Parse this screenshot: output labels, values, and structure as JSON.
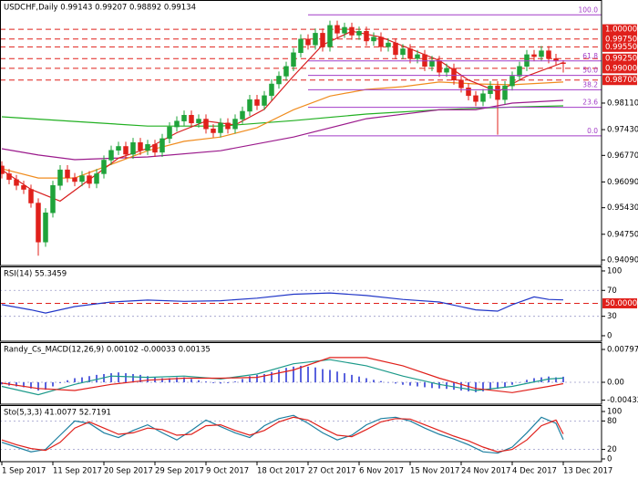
{
  "chart_data": [
    {
      "type": "candlestick",
      "title": "USDCHF,Daily  0.99143 0.99207 0.98892 0.99134",
      "x": [
        0,
        1,
        2,
        3,
        4,
        5,
        6,
        7,
        8,
        9,
        10,
        11,
        12,
        13,
        14,
        15,
        16,
        17,
        18,
        19,
        20,
        21,
        22,
        23,
        24,
        25,
        26,
        27,
        28,
        29,
        30,
        31,
        32,
        33,
        34,
        35,
        36,
        37,
        38,
        39,
        40,
        41,
        42,
        43,
        44,
        45,
        46,
        47,
        48,
        49,
        50,
        51,
        52,
        53,
        54,
        55,
        56,
        57,
        58,
        59,
        60,
        61,
        62,
        63,
        64,
        65,
        66,
        67,
        68,
        69,
        70,
        71,
        72,
        73,
        74,
        75,
        76,
        77
      ],
      "open": [
        0.965,
        0.963,
        0.9615,
        0.96,
        0.959,
        0.9555,
        0.9455,
        0.953,
        0.96,
        0.964,
        0.962,
        0.961,
        0.9625,
        0.9605,
        0.963,
        0.9665,
        0.969,
        0.97,
        0.968,
        0.971,
        0.969,
        0.9705,
        0.9685,
        0.972,
        0.975,
        0.9765,
        0.978,
        0.976,
        0.977,
        0.9745,
        0.9735,
        0.976,
        0.9745,
        0.977,
        0.979,
        0.982,
        0.9805,
        0.983,
        0.986,
        0.988,
        0.9905,
        0.994,
        0.9975,
        0.996,
        0.999,
        0.9955,
        1.001,
        0.999,
        1.0005,
        0.9985,
        0.9995,
        0.997,
        0.998,
        0.9955,
        0.9965,
        0.9935,
        0.995,
        0.9925,
        0.9935,
        0.9905,
        0.992,
        0.989,
        0.99,
        0.987,
        0.985,
        0.983,
        0.9815,
        0.9835,
        0.9855,
        0.982,
        0.9855,
        0.988,
        0.9905,
        0.9935,
        0.993,
        0.9945,
        0.9925,
        0.99143
      ],
      "high": [
        0.9662,
        0.9642,
        0.9627,
        0.9612,
        0.9602,
        0.9567,
        0.9542,
        0.9612,
        0.9652,
        0.9652,
        0.9632,
        0.9637,
        0.9637,
        0.9642,
        0.9677,
        0.9702,
        0.9712,
        0.9712,
        0.9722,
        0.9722,
        0.9717,
        0.9717,
        0.9732,
        0.9762,
        0.9777,
        0.9792,
        0.9792,
        0.9782,
        0.9782,
        0.9757,
        0.9772,
        0.9772,
        0.9782,
        0.9802,
        0.9832,
        0.9832,
        0.9842,
        0.9872,
        0.9892,
        0.9917,
        0.9952,
        0.9987,
        0.9987,
        1.0002,
        1.0002,
        1.0022,
        1.0022,
        1.0017,
        1.0017,
        1.0007,
        1.0007,
        0.9992,
        0.9992,
        0.9977,
        0.9977,
        0.9962,
        0.9962,
        0.9947,
        0.9947,
        0.9932,
        0.9932,
        0.9912,
        0.9912,
        0.9882,
        0.9862,
        0.9842,
        0.9847,
        0.9867,
        0.9867,
        0.9867,
        0.9892,
        0.9917,
        0.9947,
        0.9947,
        0.9957,
        0.9957,
        0.9937,
        0.99207
      ],
      "low": [
        0.9618,
        0.9603,
        0.9588,
        0.9578,
        0.9543,
        0.942,
        0.9443,
        0.9518,
        0.9588,
        0.9608,
        0.9598,
        0.9598,
        0.9593,
        0.9593,
        0.9618,
        0.9653,
        0.9678,
        0.9668,
        0.9668,
        0.9678,
        0.9678,
        0.9673,
        0.9673,
        0.9708,
        0.9738,
        0.9753,
        0.9748,
        0.9748,
        0.9733,
        0.9723,
        0.9723,
        0.9733,
        0.9733,
        0.9758,
        0.9778,
        0.9793,
        0.9793,
        0.9818,
        0.9848,
        0.9868,
        0.9893,
        0.9928,
        0.9948,
        0.9948,
        0.9943,
        0.9943,
        0.9978,
        0.9978,
        0.9973,
        0.9973,
        0.9958,
        0.9958,
        0.9943,
        0.9943,
        0.9923,
        0.9923,
        0.9913,
        0.9913,
        0.9893,
        0.9893,
        0.9878,
        0.9878,
        0.9858,
        0.9838,
        0.9818,
        0.9803,
        0.9803,
        0.9823,
        0.973,
        0.9808,
        0.9843,
        0.9868,
        0.9893,
        0.9918,
        0.9918,
        0.9913,
        0.9908,
        0.98892
      ],
      "close": [
        0.963,
        0.9615,
        0.96,
        0.959,
        0.9555,
        0.9455,
        0.953,
        0.96,
        0.964,
        0.962,
        0.961,
        0.9625,
        0.9605,
        0.963,
        0.9665,
        0.969,
        0.97,
        0.968,
        0.971,
        0.969,
        0.9705,
        0.9685,
        0.972,
        0.975,
        0.9765,
        0.978,
        0.976,
        0.977,
        0.9745,
        0.9735,
        0.976,
        0.9745,
        0.977,
        0.979,
        0.982,
        0.9805,
        0.983,
        0.986,
        0.988,
        0.9905,
        0.994,
        0.9975,
        0.996,
        0.999,
        0.9955,
        1.001,
        0.999,
        1.0005,
        0.9985,
        0.9995,
        0.997,
        0.998,
        0.9955,
        0.9965,
        0.9935,
        0.995,
        0.9925,
        0.9935,
        0.9905,
        0.992,
        0.989,
        0.99,
        0.987,
        0.985,
        0.983,
        0.9815,
        0.9835,
        0.9855,
        0.982,
        0.9855,
        0.988,
        0.9905,
        0.9935,
        0.993,
        0.9945,
        0.9925,
        0.992,
        0.99134
      ],
      "up_color": "#1fa33a",
      "down_color": "#e0201b",
      "ylim": [
        0.9395,
        1.0075
      ],
      "yticks": [
        {
          "value": 0.9811,
          "label": "0.98110"
        },
        {
          "value": 0.9743,
          "label": "0.97430"
        },
        {
          "value": 0.9677,
          "label": "0.96770"
        },
        {
          "value": 0.9609,
          "label": "0.96090"
        },
        {
          "value": 0.9543,
          "label": "0.95430"
        },
        {
          "value": 0.9475,
          "label": "0.94750"
        },
        {
          "value": 0.9409,
          "label": "0.94090"
        }
      ],
      "lines": [
        {
          "color": "#22b022",
          "x": [
            0,
            10,
            20,
            30,
            40,
            50,
            60,
            70,
            77
          ],
          "values": [
            0.9776,
            0.9764,
            0.9752,
            0.9752,
            0.9766,
            0.9783,
            0.9794,
            0.9801,
            0.9804
          ]
        },
        {
          "color": "#9b1a8c",
          "x": [
            0,
            5,
            10,
            20,
            30,
            40,
            50,
            60,
            65,
            70,
            77
          ],
          "values": [
            0.9694,
            0.9678,
            0.9666,
            0.9673,
            0.9689,
            0.9724,
            0.9771,
            0.9794,
            0.9794,
            0.9811,
            0.9818
          ]
        },
        {
          "color": "#f08c1e",
          "x": [
            0,
            5,
            10,
            15,
            20,
            25,
            30,
            35,
            40,
            45,
            50,
            55,
            60,
            65,
            70,
            77
          ],
          "values": [
            0.9643,
            0.9619,
            0.9619,
            0.9654,
            0.9689,
            0.9713,
            0.9724,
            0.9748,
            0.9794,
            0.9829,
            0.9846,
            0.9853,
            0.9865,
            0.986,
            0.9858,
            0.9865
          ]
        },
        {
          "color": "#d81e1e",
          "x": [
            0,
            4,
            8,
            12,
            16,
            20,
            24,
            28,
            32,
            36,
            40,
            44,
            48,
            52,
            56,
            60,
            64,
            68,
            72,
            77
          ],
          "values": [
            0.964,
            0.959,
            0.956,
            0.9615,
            0.967,
            0.9695,
            0.9735,
            0.9765,
            0.9755,
            0.9795,
            0.988,
            0.996,
            0.9995,
            0.998,
            0.995,
            0.992,
            0.987,
            0.984,
            0.988,
            0.9915
          ]
        }
      ],
      "levels": [
        {
          "value": 1.0,
          "label": "1.00000"
        },
        {
          "value": 0.9975,
          "label": "0.99750"
        },
        {
          "value": 0.9955,
          "label": "0.99550"
        },
        {
          "value": 0.9925,
          "label": "0.99250"
        },
        {
          "value": 0.99,
          "label": "0.99000"
        },
        {
          "value": 0.987,
          "label": "0.98700"
        }
      ],
      "level_color": "#e0201b",
      "fib": {
        "color": "#a23cc7",
        "from_x": 42,
        "levels": [
          {
            "value": 1.0037,
            "label": "100.0"
          },
          {
            "value": 0.9919,
            "label": "61.8"
          },
          {
            "value": 0.9882,
            "label": "50.0"
          },
          {
            "value": 0.9845,
            "label": "38.2"
          },
          {
            "value": 0.98,
            "label": "23.6"
          },
          {
            "value": 0.9727,
            "label": "0.0"
          }
        ]
      }
    },
    {
      "type": "line",
      "title": "RSI(14) 55.3459",
      "ylim": [
        -8.5,
        107
      ],
      "yticks": [
        100,
        70,
        30,
        0
      ],
      "grid": true,
      "series": [
        {
          "color": "#2136c8",
          "x": [
            0,
            4,
            6,
            10,
            15,
            20,
            25,
            30,
            35,
            40,
            45,
            50,
            55,
            60,
            65,
            68,
            70,
            73,
            75,
            77
          ],
          "values": [
            48,
            40,
            35,
            45,
            52,
            55,
            53,
            54,
            58,
            64,
            66,
            62,
            56,
            52,
            40,
            38,
            48,
            60,
            56,
            55.3459
          ]
        }
      ],
      "levels": [
        {
          "value": 50,
          "label": "50.0000"
        }
      ],
      "level_color": "#e0201b"
    },
    {
      "type": "macd",
      "title": "Randy_Cs_MACD(12,26,9) 0.00102 -0.00033 0.00135",
      "ylim": [
        -0.00531,
        0.00974
      ],
      "yticks": [
        0.00797,
        {
          "value": 0,
          "label": "0.00"
        },
        -0.00432
      ],
      "grid": true,
      "histogram": {
        "color": "#5a63de",
        "x": [
          0,
          1,
          2,
          3,
          4,
          5,
          6,
          7,
          8,
          9,
          10,
          11,
          12,
          13,
          14,
          15,
          16,
          17,
          18,
          19,
          20,
          21,
          22,
          23,
          24,
          25,
          26,
          27,
          28,
          29,
          30,
          31,
          32,
          33,
          34,
          35,
          36,
          37,
          38,
          39,
          40,
          41,
          42,
          43,
          44,
          45,
          46,
          47,
          48,
          49,
          50,
          51,
          52,
          53,
          54,
          55,
          56,
          57,
          58,
          59,
          60,
          61,
          62,
          63,
          64,
          65,
          66,
          67,
          68,
          69,
          70,
          71,
          72,
          73,
          74,
          75,
          76,
          77
        ],
        "values": [
          -0.0005,
          -0.0008,
          -0.001,
          -0.0012,
          -0.0015,
          -0.002,
          -0.0018,
          -0.001,
          -0.0002,
          0.0005,
          0.001,
          0.0012,
          0.0015,
          0.0018,
          0.002,
          0.0022,
          0.0024,
          0.0022,
          0.002,
          0.0018,
          0.0015,
          0.0012,
          0.001,
          0.001,
          0.0012,
          0.0012,
          0.0008,
          0.0005,
          0.0002,
          -0.0002,
          -0.0003,
          -0.0002,
          0.0002,
          0.0008,
          0.0015,
          0.0018,
          0.002,
          0.0025,
          0.003,
          0.0035,
          0.0038,
          0.004,
          0.0038,
          0.0036,
          0.0032,
          0.003,
          0.0026,
          0.0022,
          0.0018,
          0.0014,
          0.001,
          0.0006,
          0.0003,
          0.0,
          -0.0003,
          -0.0006,
          -0.0008,
          -0.001,
          -0.0012,
          -0.0014,
          -0.0015,
          -0.0016,
          -0.0018,
          -0.002,
          -0.0022,
          -0.0024,
          -0.0022,
          -0.0018,
          -0.0016,
          -0.0012,
          -0.0006,
          0.0,
          0.0006,
          0.001,
          0.0012,
          0.0014,
          0.0012,
          0.00135
        ]
      },
      "series": [
        {
          "color": "#1c9a8a",
          "x": [
            0,
            5,
            10,
            15,
            20,
            25,
            30,
            35,
            40,
            45,
            50,
            55,
            60,
            65,
            70,
            75,
            77
          ],
          "values": [
            -0.001,
            -0.003,
            -0.0005,
            0.0015,
            0.0012,
            0.0015,
            0.0008,
            0.002,
            0.0045,
            0.0055,
            0.004,
            0.0015,
            -0.0005,
            -0.002,
            -0.001,
            0.0008,
            0.00102
          ]
        },
        {
          "color": "#e0201b",
          "x": [
            0,
            5,
            10,
            15,
            20,
            25,
            30,
            35,
            40,
            45,
            50,
            55,
            60,
            65,
            70,
            75,
            77
          ],
          "values": [
            -0.0002,
            -0.0015,
            -0.002,
            -0.0005,
            0.0005,
            0.001,
            0.001,
            0.0012,
            0.003,
            0.006,
            0.006,
            0.004,
            0.001,
            -0.0015,
            -0.0025,
            -0.001,
            -0.00033
          ]
        }
      ]
    },
    {
      "type": "line",
      "title": "Sto(5,3,3) 41.0077 52.7191",
      "ylim": [
        -5.8,
        113.5
      ],
      "yticks": [
        100,
        80,
        20,
        0
      ],
      "grid": true,
      "series": [
        {
          "color": "#1c7fa0",
          "x": [
            0,
            2,
            4,
            6,
            8,
            10,
            12,
            14,
            16,
            18,
            20,
            22,
            24,
            26,
            28,
            30,
            32,
            34,
            36,
            38,
            40,
            42,
            44,
            46,
            48,
            50,
            52,
            54,
            56,
            58,
            60,
            62,
            64,
            66,
            68,
            70,
            72,
            74,
            76,
            77
          ],
          "values": [
            35,
            25,
            15,
            20,
            50,
            80,
            75,
            55,
            45,
            60,
            72,
            55,
            40,
            60,
            82,
            68,
            55,
            45,
            70,
            85,
            92,
            75,
            55,
            40,
            50,
            72,
            85,
            88,
            80,
            65,
            52,
            42,
            30,
            15,
            12,
            25,
            55,
            88,
            75,
            41.0077
          ]
        },
        {
          "color": "#e0201b",
          "x": [
            0,
            2,
            4,
            6,
            8,
            10,
            12,
            14,
            16,
            18,
            20,
            22,
            24,
            26,
            28,
            30,
            32,
            34,
            36,
            38,
            40,
            42,
            44,
            46,
            48,
            50,
            52,
            54,
            56,
            58,
            60,
            62,
            64,
            66,
            68,
            70,
            72,
            74,
            76,
            77
          ],
          "values": [
            40,
            30,
            22,
            18,
            35,
            65,
            78,
            65,
            52,
            55,
            65,
            62,
            50,
            52,
            70,
            72,
            60,
            50,
            60,
            78,
            88,
            82,
            65,
            50,
            47,
            62,
            78,
            85,
            84,
            72,
            60,
            48,
            38,
            25,
            15,
            20,
            40,
            70,
            82,
            52.7191
          ]
        }
      ],
      "xlim": [
        -0.25,
        82.25
      ],
      "xticks": [
        {
          "value": 0,
          "label": "1 Sep 2017"
        },
        {
          "value": 7,
          "label": "11 Sep 2017"
        },
        {
          "value": 14,
          "label": "20 Sep 2017"
        },
        {
          "value": 21,
          "label": "29 Sep 2017"
        },
        {
          "value": 28,
          "label": "9 Oct 2017"
        },
        {
          "value": 35,
          "label": "18 Oct 2017"
        },
        {
          "value": 42,
          "label": "27 Oct 2017"
        },
        {
          "value": 49,
          "label": "6 Nov 2017"
        },
        {
          "value": 56,
          "label": "15 Nov 2017"
        },
        {
          "value": 63,
          "label": "24 Nov 2017"
        },
        {
          "value": 70,
          "label": "4 Dec 2017"
        },
        {
          "value": 77,
          "label": "13 Dec 2017"
        }
      ]
    }
  ]
}
